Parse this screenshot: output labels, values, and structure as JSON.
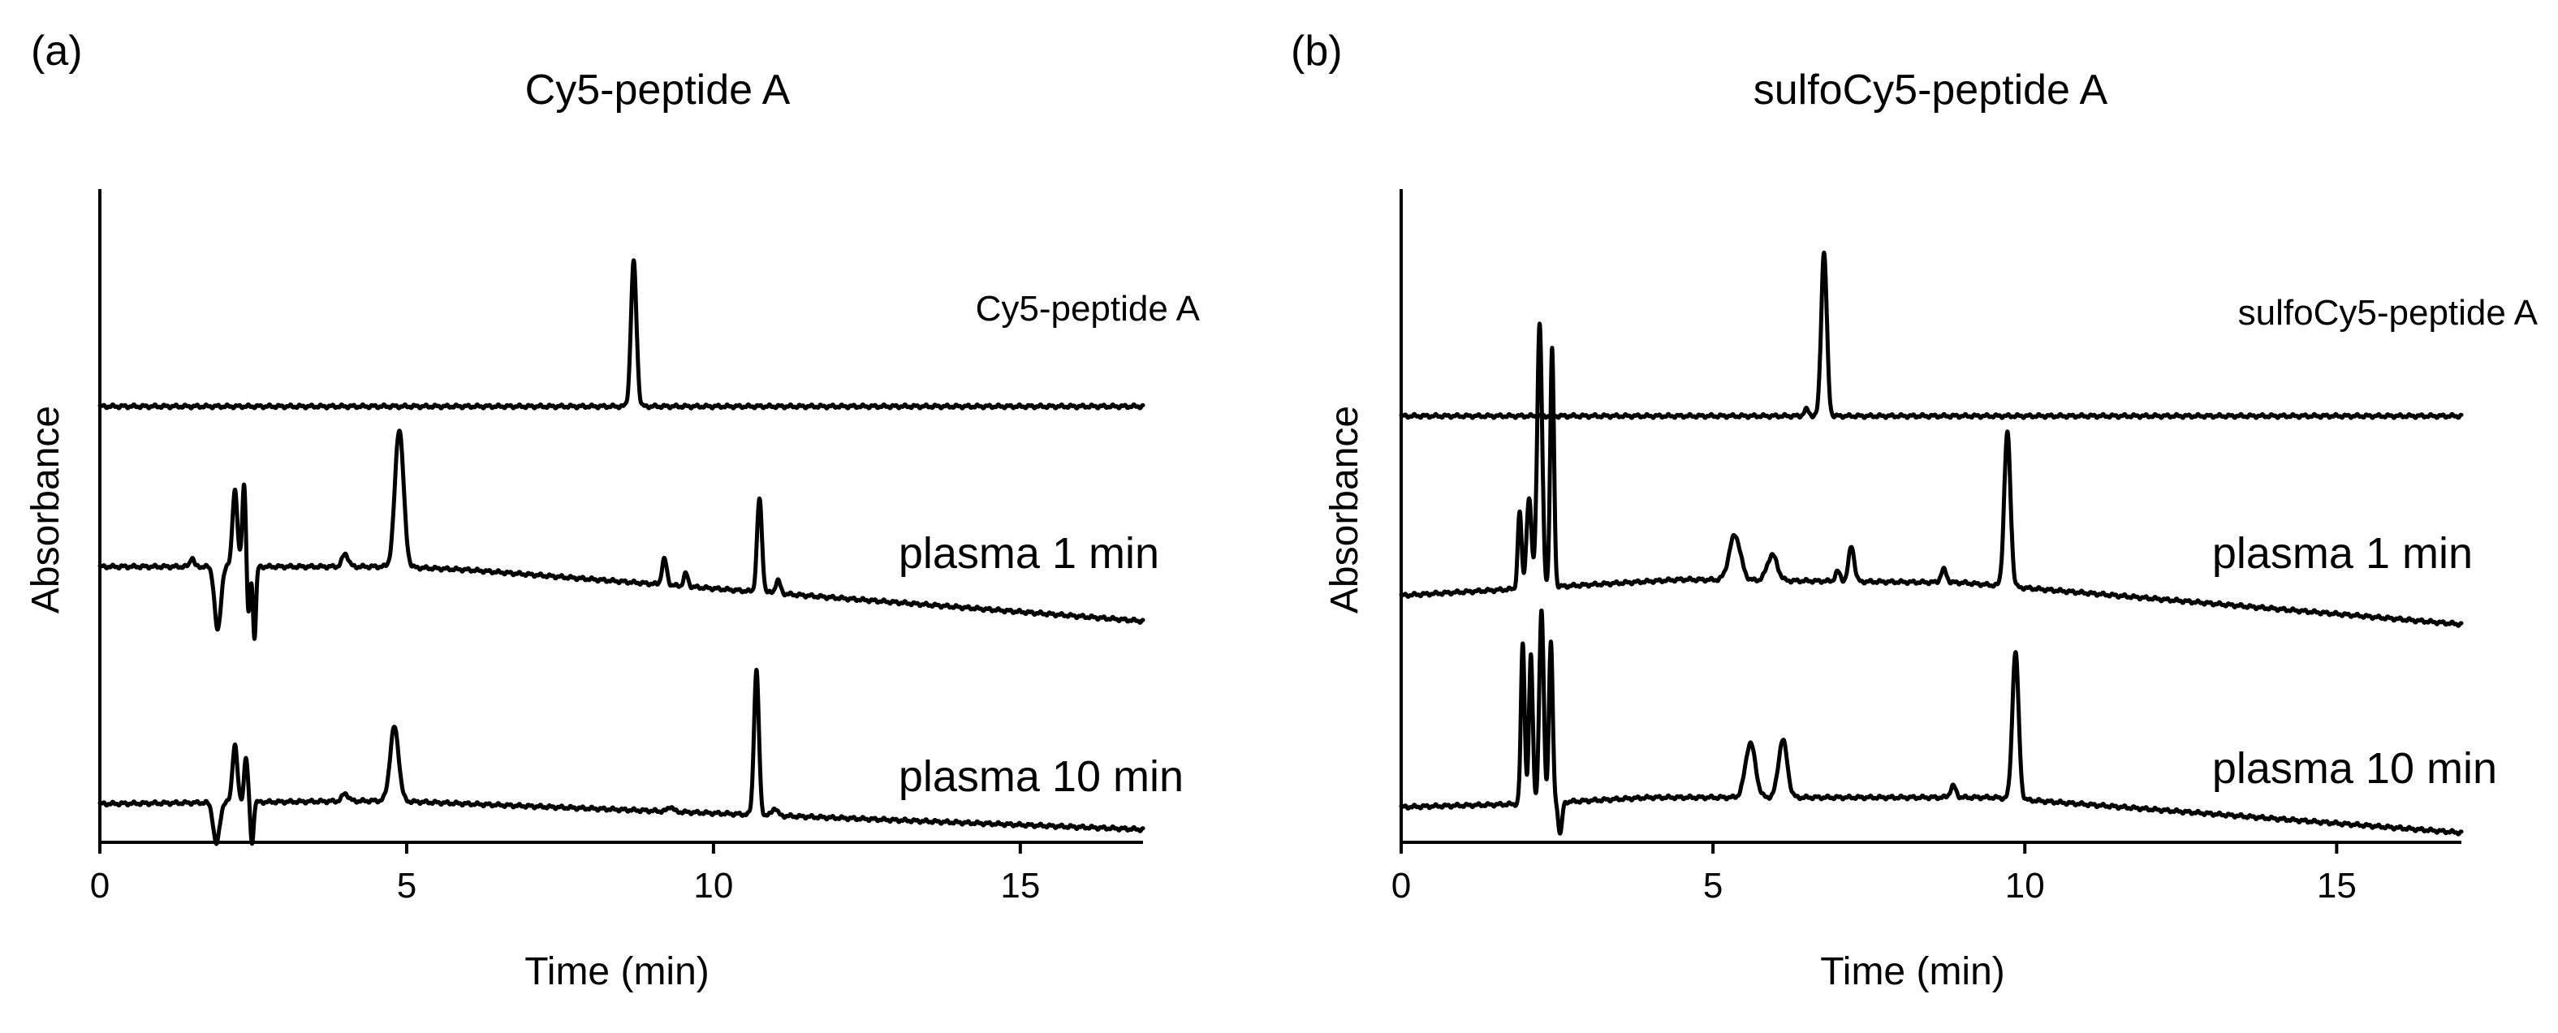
{
  "chart_data": [
    {
      "type": "line",
      "panel_label": "(a)",
      "title": "Cy5-peptide A",
      "xlabel": "Time (min)",
      "ylabel": "Absorbance",
      "xlim": [
        0,
        17
      ],
      "xticks": [
        0,
        5,
        10,
        15
      ],
      "yticks": [],
      "grid": false,
      "y_units": "arbitrary, traces vertically offset",
      "series": [
        {
          "name": "Cy5-peptide A",
          "label": "Cy5-peptide A",
          "baseline": [
            [
              0,
              0.68
            ],
            [
              17,
              0.68
            ]
          ],
          "peaks": [
            {
              "t": 8.7,
              "h": 0.225,
              "w": 0.045
            }
          ],
          "dips": []
        },
        {
          "name": "plasma 1 min",
          "label": "plasma 1 min",
          "baseline": [
            [
              0,
              0.43
            ],
            [
              4.8,
              0.43
            ],
            [
              6,
              0.425
            ],
            [
              17,
              0.345
            ]
          ],
          "peaks": [
            {
              "t": 1.5,
              "h": 0.015,
              "w": 0.03
            },
            {
              "t": 2.2,
              "h": 0.12,
              "w": 0.04
            },
            {
              "t": 2.35,
              "h": 0.13,
              "w": 0.03
            },
            {
              "t": 4.0,
              "h": 0.02,
              "w": 0.05
            },
            {
              "t": 4.88,
              "h": 0.215,
              "w": 0.07
            },
            {
              "t": 9.2,
              "h": 0.04,
              "w": 0.04
            },
            {
              "t": 9.55,
              "h": 0.02,
              "w": 0.035
            },
            {
              "t": 10.75,
              "h": 0.145,
              "w": 0.04
            },
            {
              "t": 11.05,
              "h": 0.02,
              "w": 0.04
            }
          ],
          "dips": [
            {
              "t": 1.92,
              "h": 0.1,
              "w": 0.05
            },
            {
              "t": 2.42,
              "h": 0.08,
              "w": 0.025
            },
            {
              "t": 2.52,
              "h": 0.11,
              "w": 0.025
            }
          ]
        },
        {
          "name": "plasma 10 min",
          "label": "plasma 10 min",
          "baseline": [
            [
              0,
              0.06
            ],
            [
              4.7,
              0.065
            ],
            [
              6,
              0.06
            ],
            [
              17,
              0.02
            ]
          ],
          "peaks": [
            {
              "t": 2.2,
              "h": 0.09,
              "w": 0.04
            },
            {
              "t": 2.38,
              "h": 0.07,
              "w": 0.03
            },
            {
              "t": 4.0,
              "h": 0.012,
              "w": 0.05
            },
            {
              "t": 4.8,
              "h": 0.115,
              "w": 0.07
            },
            {
              "t": 9.3,
              "h": 0.008,
              "w": 0.04
            },
            {
              "t": 10.7,
              "h": 0.225,
              "w": 0.04
            },
            {
              "t": 11.0,
              "h": 0.012,
              "w": 0.04
            }
          ],
          "dips": [
            {
              "t": 1.9,
              "h": 0.065,
              "w": 0.05
            },
            {
              "t": 2.48,
              "h": 0.065,
              "w": 0.025
            }
          ]
        }
      ]
    },
    {
      "type": "line",
      "panel_label": "(b)",
      "title": "sulfoCy5-peptide A",
      "xlabel": "Time (min)",
      "ylabel": "Absorbance",
      "xlim": [
        0,
        17
      ],
      "xticks": [
        0,
        5,
        10,
        15
      ],
      "yticks": [],
      "grid": false,
      "y_units": "arbitrary, traces vertically offset",
      "series": [
        {
          "name": "sulfoCy5-peptide A",
          "label": "sulfoCy5-peptide A",
          "baseline": [
            [
              0,
              0.665
            ],
            [
              17,
              0.665
            ]
          ],
          "peaks": [
            {
              "t": 6.5,
              "h": 0.01,
              "w": 0.04
            },
            {
              "t": 6.78,
              "h": 0.255,
              "w": 0.045
            }
          ],
          "dips": []
        },
        {
          "name": "plasma 1 min",
          "label": "plasma 1 min",
          "baseline": [
            [
              0,
              0.385
            ],
            [
              4.5,
              0.41
            ],
            [
              9,
              0.405
            ],
            [
              17,
              0.34
            ]
          ],
          "peaks": [
            {
              "t": 1.9,
              "h": 0.12,
              "w": 0.03
            },
            {
              "t": 2.05,
              "h": 0.14,
              "w": 0.04
            },
            {
              "t": 2.22,
              "h": 0.41,
              "w": 0.04
            },
            {
              "t": 2.42,
              "h": 0.37,
              "w": 0.03
            },
            {
              "t": 5.35,
              "h": 0.07,
              "w": 0.09
            },
            {
              "t": 5.95,
              "h": 0.04,
              "w": 0.08
            },
            {
              "t": 7.0,
              "h": 0.015,
              "w": 0.04
            },
            {
              "t": 7.22,
              "h": 0.055,
              "w": 0.045
            },
            {
              "t": 8.7,
              "h": 0.02,
              "w": 0.045
            },
            {
              "t": 9.72,
              "h": 0.24,
              "w": 0.05
            }
          ],
          "dips": []
        },
        {
          "name": "plasma 10 min",
          "label": "plasma 10 min",
          "baseline": [
            [
              0,
              0.055
            ],
            [
              2.0,
              0.06
            ],
            [
              4,
              0.07
            ],
            [
              9.5,
              0.07
            ],
            [
              17,
              0.015
            ]
          ],
          "peaks": [
            {
              "t": 1.95,
              "h": 0.25,
              "w": 0.03
            },
            {
              "t": 2.08,
              "h": 0.23,
              "w": 0.03
            },
            {
              "t": 2.25,
              "h": 0.3,
              "w": 0.035
            },
            {
              "t": 2.4,
              "h": 0.25,
              "w": 0.03
            },
            {
              "t": 5.6,
              "h": 0.085,
              "w": 0.08
            },
            {
              "t": 6.12,
              "h": 0.09,
              "w": 0.07
            },
            {
              "t": 8.85,
              "h": 0.018,
              "w": 0.045
            },
            {
              "t": 9.85,
              "h": 0.23,
              "w": 0.05
            }
          ],
          "dips": [
            {
              "t": 2.55,
              "h": 0.05,
              "w": 0.03
            }
          ]
        }
      ]
    }
  ]
}
